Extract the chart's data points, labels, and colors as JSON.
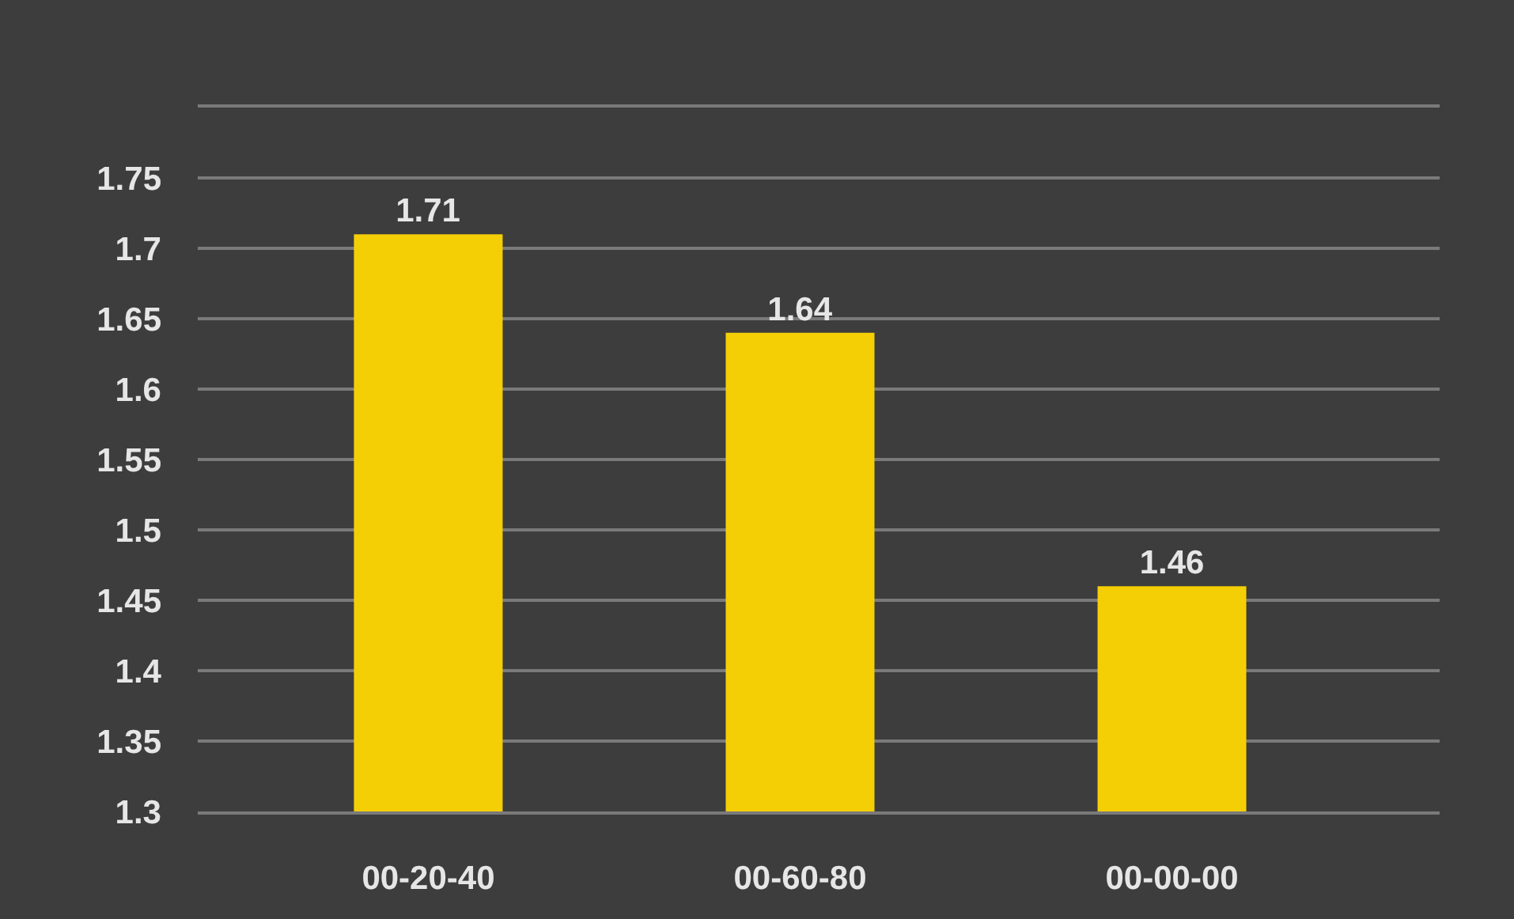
{
  "chart_data": {
    "type": "bar",
    "categories": [
      "00-20-40",
      "00-60-80",
      "00-00-00"
    ],
    "values": [
      1.71,
      1.64,
      1.46
    ],
    "color": "#f5cf06",
    "data_labels": true,
    "ylim": [
      1.3,
      1.8
    ],
    "yticks": [
      1.3,
      1.35,
      1.4,
      1.45,
      1.5,
      1.55,
      1.6,
      1.65,
      1.7,
      1.75,
      {
        "value": 1.8,
        "label": null
      }
    ],
    "grid": "y"
  }
}
